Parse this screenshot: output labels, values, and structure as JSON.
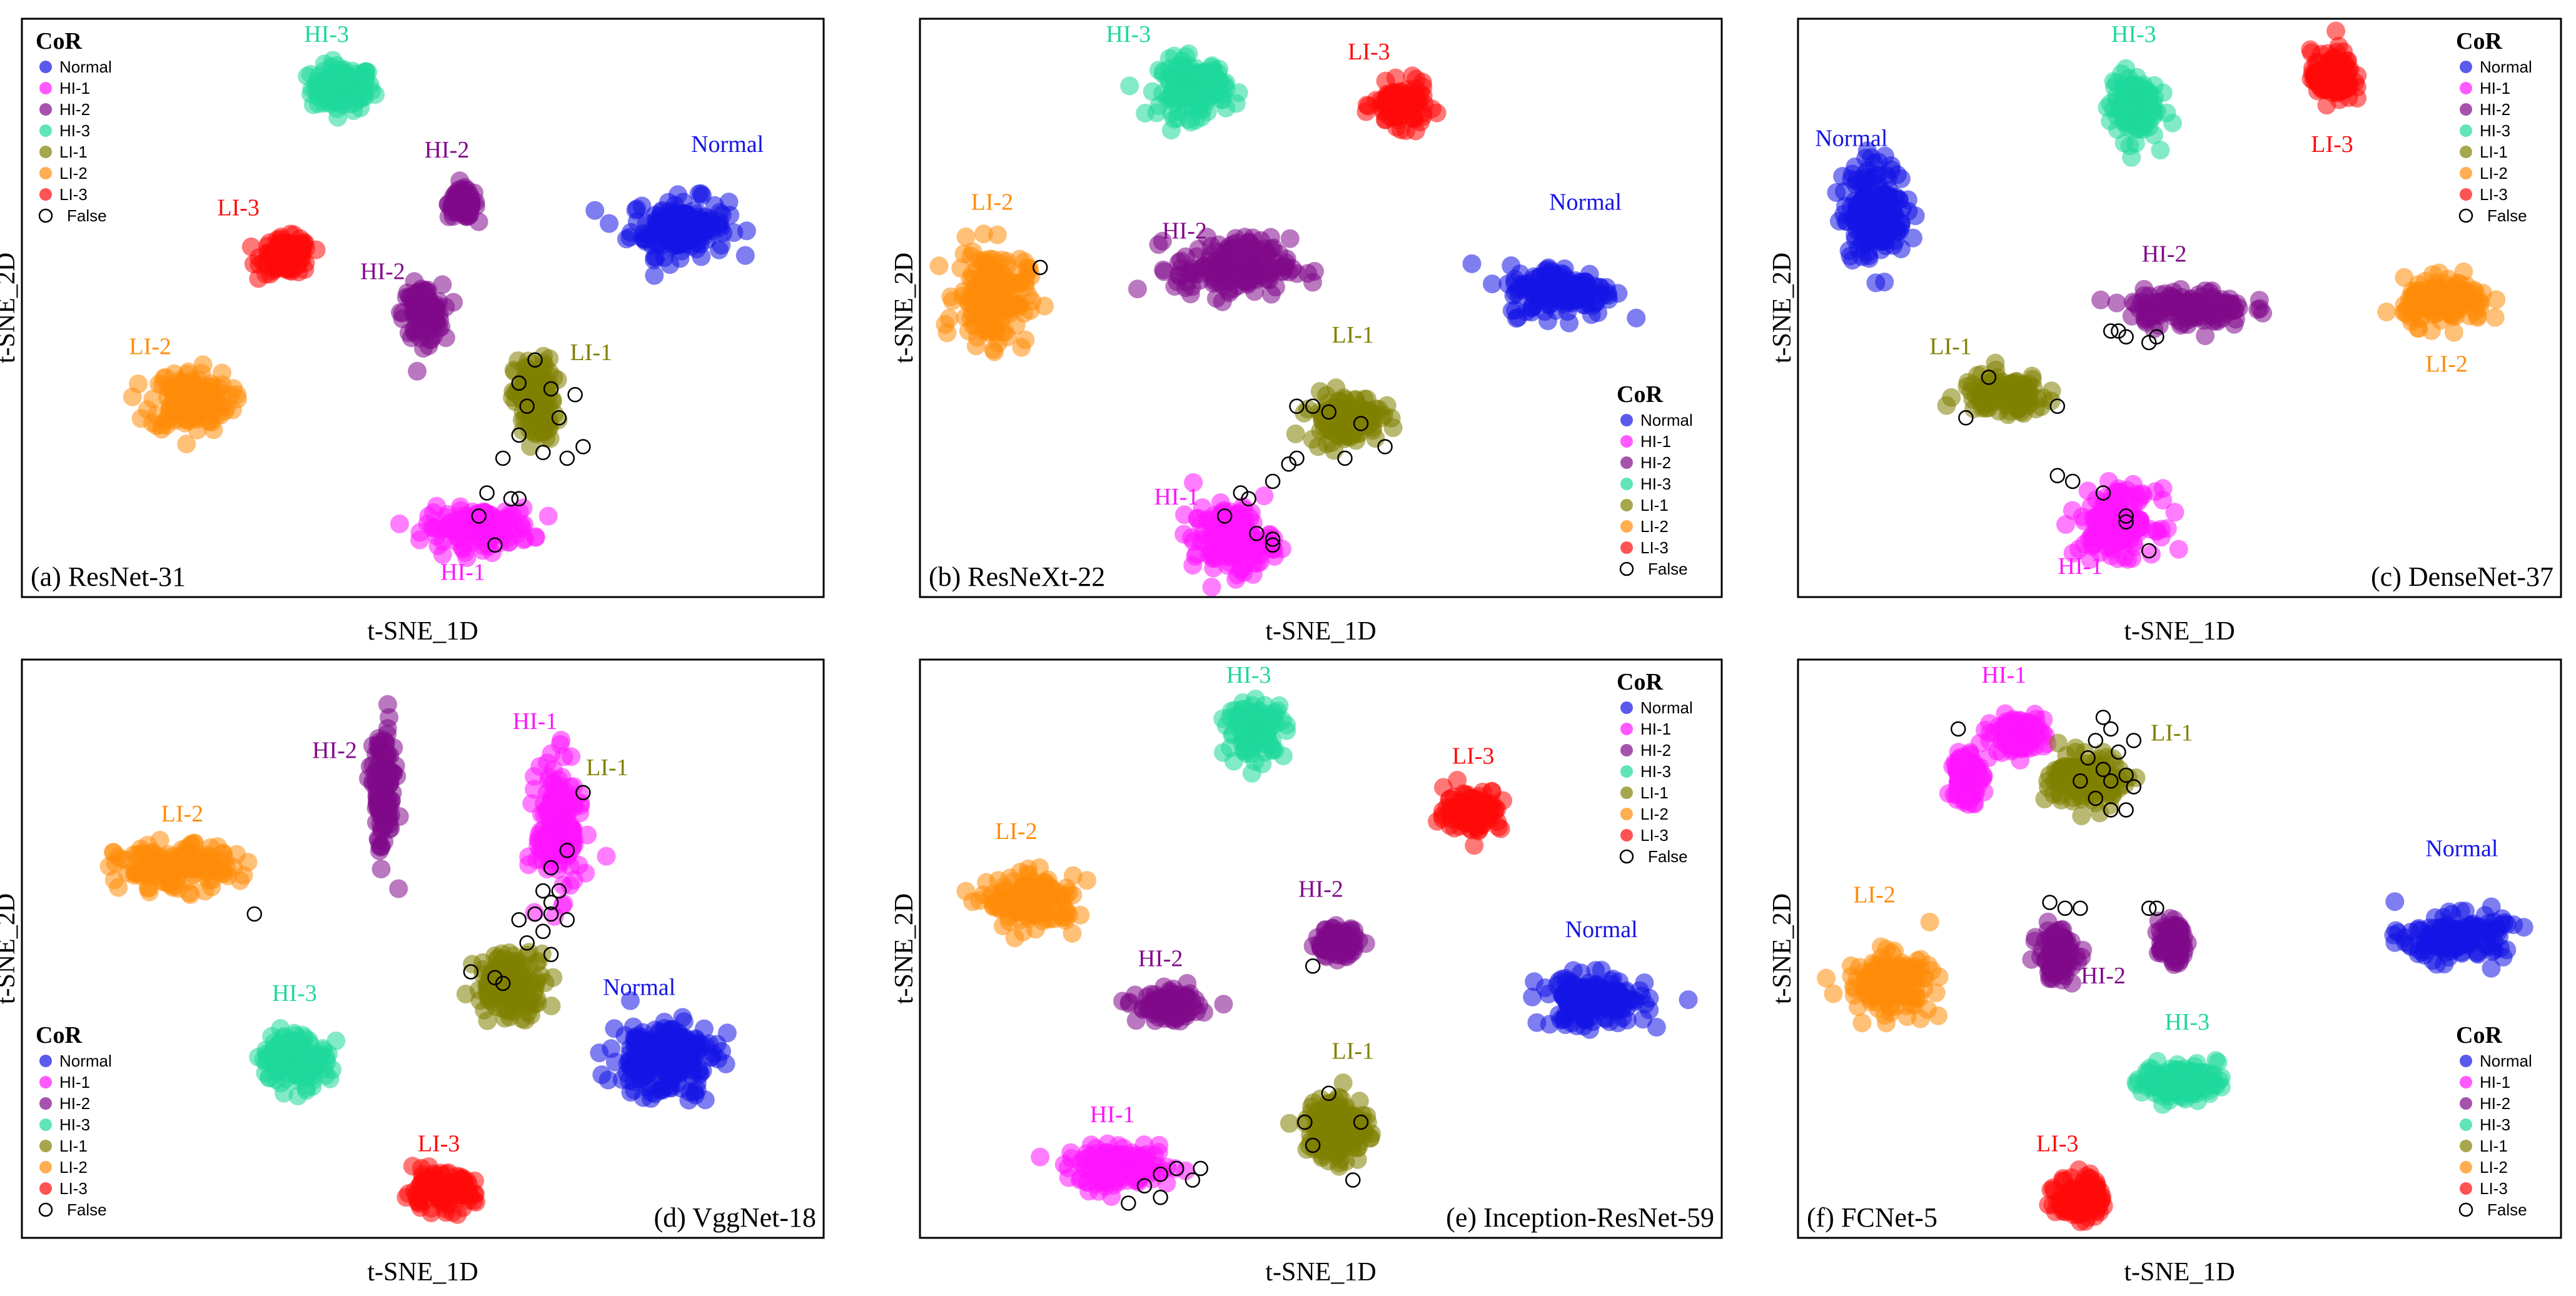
{
  "legend": {
    "title": "CoR",
    "classes": [
      {
        "name": "Normal",
        "color": "#1414e6"
      },
      {
        "name": "HI-1",
        "color": "#ff14ff"
      },
      {
        "name": "HI-2",
        "color": "#800a8a"
      },
      {
        "name": "HI-3",
        "color": "#1ed89a"
      },
      {
        "name": "LI-1",
        "color": "#808000"
      },
      {
        "name": "LI-2",
        "color": "#ff8c0a"
      },
      {
        "name": "LI-3",
        "color": "#ff0a0a"
      }
    ],
    "false_label": "False"
  },
  "axes": {
    "xlabel": "t-SNE_1D",
    "ylabel": "t-SNE_2D"
  },
  "chart_data": [
    {
      "type": "scatter",
      "title": "(a) ResNet-31",
      "xlabel": "t-SNE_1D",
      "ylabel": "t-SNE_2D",
      "xlim": [
        0,
        100
      ],
      "ylim": [
        0,
        100
      ],
      "legend_position": "top-left",
      "clusters": [
        {
          "class": "HI-3",
          "label": "HI-3",
          "cx": 40,
          "cy": 88,
          "sx": 3.5,
          "sy": 3.5,
          "label_at": [
            38,
            96
          ]
        },
        {
          "class": "Normal",
          "label": "Normal",
          "cx": 82,
          "cy": 64,
          "sx": 5.5,
          "sy": 4.5,
          "label_at": [
            88,
            77
          ]
        },
        {
          "class": "HI-2",
          "label": "HI-2",
          "cx": 55,
          "cy": 68,
          "sx": 1.6,
          "sy": 2.2,
          "label_at": [
            53,
            76
          ]
        },
        {
          "class": "LI-3",
          "label": "LI-3",
          "cx": 33,
          "cy": 59,
          "sx": 2.8,
          "sy": 2.8,
          "label_at": [
            27,
            66
          ]
        },
        {
          "class": "HI-2",
          "label": "HI-2",
          "cx": 50,
          "cy": 49,
          "sx": 2.2,
          "sy": 4.5,
          "label_at": [
            45,
            55
          ]
        },
        {
          "class": "LI-2",
          "label": "LI-2",
          "cx": 21,
          "cy": 34,
          "sx": 4.5,
          "sy": 4.8,
          "label_at": [
            16,
            42
          ]
        },
        {
          "class": "LI-1",
          "label": "LI-1",
          "cx": 64,
          "cy": 34,
          "sx": 2.3,
          "sy": 6.5,
          "label_at": [
            71,
            41
          ]
        },
        {
          "class": "HI-1",
          "label": "HI-1",
          "cx": 57,
          "cy": 12,
          "sx": 6,
          "sy": 3,
          "label_at": [
            55,
            3
          ]
        }
      ],
      "false_points": [
        [
          64,
          41
        ],
        [
          62,
          37
        ],
        [
          66,
          36
        ],
        [
          69,
          35
        ],
        [
          63,
          33
        ],
        [
          67,
          31
        ],
        [
          62,
          28
        ],
        [
          70,
          26
        ],
        [
          65,
          25
        ],
        [
          68,
          24
        ],
        [
          60,
          24
        ],
        [
          58,
          18
        ],
        [
          61,
          17
        ],
        [
          62,
          17
        ],
        [
          57,
          14
        ],
        [
          59,
          9
        ]
      ]
    },
    {
      "type": "scatter",
      "title": "(b) ResNeXt-22",
      "xlabel": "t-SNE_1D",
      "ylabel": "t-SNE_2D",
      "xlim": [
        0,
        100
      ],
      "ylim": [
        0,
        100
      ],
      "legend_position": "bottom-right",
      "clusters": [
        {
          "class": "HI-3",
          "label": "HI-3",
          "cx": 34,
          "cy": 88,
          "sx": 3.8,
          "sy": 4.5,
          "label_at": [
            26,
            96
          ]
        },
        {
          "class": "LI-3",
          "label": "LI-3",
          "cx": 60,
          "cy": 85,
          "sx": 3,
          "sy": 3.2,
          "label_at": [
            56,
            93
          ]
        },
        {
          "class": "LI-2",
          "label": "LI-2",
          "cx": 9,
          "cy": 52,
          "sx": 4,
          "sy": 7.5,
          "label_at": [
            9,
            67
          ]
        },
        {
          "class": "HI-2",
          "label": "HI-2",
          "cx": 39,
          "cy": 57,
          "sx": 6.5,
          "sy": 4.5,
          "label_at": [
            33,
            62
          ]
        },
        {
          "class": "Normal",
          "label": "Normal",
          "cx": 80,
          "cy": 53,
          "sx": 6,
          "sy": 4,
          "label_at": [
            83,
            67
          ]
        },
        {
          "class": "LI-1",
          "label": "LI-1",
          "cx": 53,
          "cy": 31,
          "sx": 4,
          "sy": 3.8,
          "label_at": [
            54,
            44
          ]
        },
        {
          "class": "HI-1",
          "label": "HI-1",
          "cx": 39,
          "cy": 10,
          "sx": 4.5,
          "sy": 5,
          "label_at": [
            32,
            16
          ]
        }
      ],
      "false_points": [
        [
          15,
          57
        ],
        [
          47,
          33
        ],
        [
          49,
          33
        ],
        [
          51,
          32
        ],
        [
          55,
          30
        ],
        [
          58,
          26
        ],
        [
          53,
          24
        ],
        [
          47,
          24
        ],
        [
          46,
          23
        ],
        [
          44,
          20
        ],
        [
          40,
          18
        ],
        [
          41,
          17
        ],
        [
          38,
          14
        ],
        [
          42,
          11
        ],
        [
          44,
          10
        ],
        [
          44,
          9
        ]
      ]
    },
    {
      "type": "scatter",
      "title": "(c) DenseNet-37",
      "xlabel": "t-SNE_1D",
      "ylabel": "t-SNE_2D",
      "xlim": [
        0,
        100
      ],
      "ylim": [
        0,
        100
      ],
      "legend_position": "top-right",
      "clusters": [
        {
          "class": "HI-3",
          "label": "HI-3",
          "cx": 44,
          "cy": 85,
          "sx": 2.8,
          "sy": 5.5,
          "label_at": [
            44,
            96
          ]
        },
        {
          "class": "LI-3",
          "label": "LI-3",
          "cx": 70,
          "cy": 90,
          "sx": 2.5,
          "sy": 4,
          "label_at": [
            70,
            77
          ]
        },
        {
          "class": "Normal",
          "label": "Normal",
          "cx": 10,
          "cy": 67,
          "sx": 3.8,
          "sy": 7.5,
          "label_at": [
            7,
            78
          ]
        },
        {
          "class": "HI-2",
          "label": "HI-2",
          "cx": 51,
          "cy": 50,
          "sx": 7,
          "sy": 2.8,
          "label_at": [
            48,
            58
          ]
        },
        {
          "class": "LI-2",
          "label": "LI-2",
          "cx": 85,
          "cy": 51,
          "sx": 5,
          "sy": 3.5,
          "label_at": [
            85,
            39
          ]
        },
        {
          "class": "LI-1",
          "label": "LI-1",
          "cx": 27,
          "cy": 35,
          "sx": 5,
          "sy": 3,
          "label_at": [
            20,
            42
          ]
        },
        {
          "class": "HI-1",
          "label": "HI-1",
          "cx": 42,
          "cy": 13,
          "sx": 4.5,
          "sy": 5,
          "label_at": [
            37,
            4
          ]
        }
      ],
      "false_points": [
        [
          41,
          46
        ],
        [
          42,
          46
        ],
        [
          43,
          45
        ],
        [
          46,
          44
        ],
        [
          47,
          45
        ],
        [
          25,
          38
        ],
        [
          34,
          33
        ],
        [
          22,
          31
        ],
        [
          34,
          21
        ],
        [
          36,
          20
        ],
        [
          40,
          18
        ],
        [
          43,
          14
        ],
        [
          43,
          13
        ],
        [
          46,
          8
        ]
      ]
    },
    {
      "type": "scatter",
      "title": "(d) VggNet-18",
      "xlabel": "t-SNE_1D",
      "ylabel": "t-SNE_2D",
      "xlim": [
        0,
        100
      ],
      "ylim": [
        0,
        100
      ],
      "legend_position": "bottom-left",
      "clusters": [
        {
          "class": "HI-2",
          "label": "HI-2",
          "cx": 45,
          "cy": 77,
          "sx": 1.4,
          "sy": 10,
          "label_at": [
            39,
            83
          ]
        },
        {
          "class": "HI-1",
          "label": "HI-1",
          "cx": 67,
          "cy": 71,
          "sx": 2.5,
          "sy": 10,
          "label_at": [
            64,
            88
          ]
        },
        {
          "class": "LI-2",
          "label": "LI-2",
          "cx": 19,
          "cy": 64,
          "sx": 6.5,
          "sy": 3.5,
          "label_at": [
            20,
            72
          ]
        },
        {
          "class": "LI-1",
          "label": "LI-1",
          "cx": 61,
          "cy": 44,
          "sx": 4,
          "sy": 5,
          "label_at": [
            73,
            80
          ]
        },
        {
          "class": "HI-3",
          "label": "HI-3",
          "cx": 34,
          "cy": 31,
          "sx": 3.8,
          "sy": 4,
          "label_at": [
            34,
            41
          ]
        },
        {
          "class": "Normal",
          "label": "Normal",
          "cx": 80,
          "cy": 31,
          "sx": 6,
          "sy": 6,
          "label_at": [
            77,
            42
          ]
        },
        {
          "class": "LI-3",
          "label": "LI-3",
          "cx": 52,
          "cy": 8,
          "sx": 4,
          "sy": 2.8,
          "label_at": [
            52,
            15
          ]
        }
      ],
      "false_points": [
        [
          70,
          77
        ],
        [
          68,
          67
        ],
        [
          66,
          64
        ],
        [
          67,
          60
        ],
        [
          65,
          60
        ],
        [
          66,
          58
        ],
        [
          64,
          56
        ],
        [
          66,
          56
        ],
        [
          62,
          55
        ],
        [
          68,
          55
        ],
        [
          65,
          53
        ],
        [
          63,
          51
        ],
        [
          66,
          49
        ],
        [
          56,
          46
        ],
        [
          59,
          45
        ],
        [
          60,
          44
        ],
        [
          29,
          56
        ]
      ]
    },
    {
      "type": "scatter",
      "title": "(e) Inception-ResNet-59",
      "xlabel": "t-SNE_1D",
      "ylabel": "t-SNE_2D",
      "xlim": [
        0,
        100
      ],
      "ylim": [
        0,
        100
      ],
      "legend_position": "top-right",
      "clusters": [
        {
          "class": "HI-3",
          "label": "HI-3",
          "cx": 42,
          "cy": 88,
          "sx": 3.2,
          "sy": 4.2,
          "label_at": [
            41,
            96
          ]
        },
        {
          "class": "LI-3",
          "label": "LI-3",
          "cx": 69,
          "cy": 74,
          "sx": 3.2,
          "sy": 3.3,
          "label_at": [
            69,
            82
          ]
        },
        {
          "class": "LI-2",
          "label": "LI-2",
          "cx": 14,
          "cy": 58,
          "sx": 5,
          "sy": 4,
          "label_at": [
            12,
            69
          ]
        },
        {
          "class": "HI-2",
          "label": "HI-2",
          "cx": 52,
          "cy": 51,
          "sx": 2.4,
          "sy": 2.2,
          "label_at": [
            50,
            59
          ]
        },
        {
          "class": "HI-2",
          "label": "HI-2",
          "cx": 31,
          "cy": 40,
          "sx": 3.5,
          "sy": 2.2,
          "label_at": [
            30,
            47
          ]
        },
        {
          "class": "Normal",
          "label": "Normal",
          "cx": 84,
          "cy": 41,
          "sx": 6,
          "sy": 4,
          "label_at": [
            85,
            52
          ]
        },
        {
          "class": "LI-1",
          "label": "LI-1",
          "cx": 52,
          "cy": 19,
          "sx": 3.5,
          "sy": 5.5,
          "label_at": [
            54,
            31
          ]
        },
        {
          "class": "HI-1",
          "label": "HI-1",
          "cx": 25,
          "cy": 12,
          "sx": 6,
          "sy": 3,
          "label_at": [
            24,
            20
          ]
        }
      ],
      "false_points": [
        [
          49,
          47
        ],
        [
          51,
          25
        ],
        [
          48,
          20
        ],
        [
          55,
          20
        ],
        [
          49,
          16
        ],
        [
          54,
          10
        ],
        [
          35,
          12
        ],
        [
          34,
          10
        ],
        [
          32,
          12
        ],
        [
          30,
          11
        ],
        [
          28,
          9
        ],
        [
          30,
          7
        ],
        [
          26,
          6
        ]
      ]
    },
    {
      "type": "scatter",
      "title": "(f) FCNet-5",
      "xlabel": "t-SNE_1D",
      "ylabel": "t-SNE_2D",
      "xlim": [
        0,
        100
      ],
      "ylim": [
        0,
        100
      ],
      "legend_position": "bottom-right",
      "clusters": [
        {
          "class": "HI-1",
          "label": "HI-1",
          "cx": 29,
          "cy": 87,
          "sx": 3,
          "sy": 2.8,
          "label_at": [
            27,
            96
          ]
        },
        {
          "class": "HI-1",
          "label": "HI-1",
          "cx": 22,
          "cy": 80,
          "sx": 1.6,
          "sy": 4.5,
          "label_at": [
            0,
            0
          ]
        },
        {
          "class": "LI-1",
          "label": "LI-1",
          "cx": 38,
          "cy": 79,
          "sx": 4.5,
          "sy": 4,
          "label_at": [
            49,
            86
          ]
        },
        {
          "class": "Normal",
          "label": "Normal",
          "cx": 86,
          "cy": 52,
          "sx": 6,
          "sy": 3.5,
          "label_at": [
            87,
            66
          ]
        },
        {
          "class": "LI-2",
          "label": "LI-2",
          "cx": 12,
          "cy": 44,
          "sx": 5,
          "sy": 4.5,
          "label_at": [
            10,
            58
          ]
        },
        {
          "class": "HI-2",
          "label": "HI-2",
          "cx": 34,
          "cy": 49,
          "sx": 2.2,
          "sy": 4,
          "label_at": [
            40,
            44
          ]
        },
        {
          "class": "HI-2",
          "label": "HI-2",
          "cx": 49,
          "cy": 51,
          "sx": 1.5,
          "sy": 3,
          "label_at": [
            0,
            0
          ]
        },
        {
          "class": "HI-3",
          "label": "HI-3",
          "cx": 50,
          "cy": 27,
          "sx": 4.5,
          "sy": 2.8,
          "label_at": [
            51,
            36
          ]
        },
        {
          "class": "LI-3",
          "label": "LI-3",
          "cx": 37,
          "cy": 7,
          "sx": 2.8,
          "sy": 3.5,
          "label_at": [
            34,
            15
          ]
        }
      ],
      "false_points": [
        [
          40,
          90
        ],
        [
          41,
          88
        ],
        [
          39,
          86
        ],
        [
          42,
          84
        ],
        [
          44,
          86
        ],
        [
          38,
          83
        ],
        [
          40,
          81
        ],
        [
          43,
          80
        ],
        [
          37,
          79
        ],
        [
          41,
          79
        ],
        [
          44,
          78
        ],
        [
          39,
          76
        ],
        [
          41,
          74
        ],
        [
          43,
          74
        ],
        [
          46,
          57
        ],
        [
          33,
          58
        ],
        [
          35,
          57
        ],
        [
          37,
          57
        ],
        [
          47,
          57
        ],
        [
          21,
          88
        ]
      ]
    }
  ]
}
